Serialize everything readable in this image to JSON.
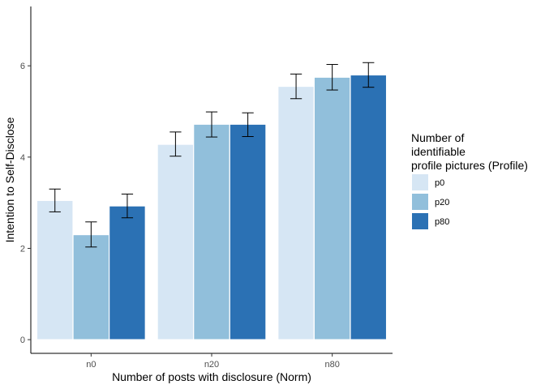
{
  "chart_data": {
    "type": "bar",
    "xlabel": "Number of posts with disclosure (Norm)",
    "ylabel": "Intention to Self-Disclose",
    "categories": [
      "n0",
      "n20",
      "n80"
    ],
    "ylim": [
      -0.3,
      7.3
    ],
    "yticks": [
      0,
      2,
      4,
      6
    ],
    "grid": false,
    "legend": {
      "title_lines": [
        "Number of",
        "identifiable",
        "profile pictures (Profile)"
      ],
      "position": "right"
    },
    "series": [
      {
        "name": "p0",
        "color": "#d6e6f4",
        "values": [
          3.05,
          4.28,
          5.55
        ],
        "err_low": [
          2.8,
          4.02,
          5.28
        ],
        "err_high": [
          3.3,
          4.55,
          5.82
        ]
      },
      {
        "name": "p20",
        "color": "#91bfdb",
        "values": [
          2.3,
          4.72,
          5.75
        ],
        "err_low": [
          2.03,
          4.44,
          5.47
        ],
        "err_high": [
          2.58,
          4.99,
          6.03
        ]
      },
      {
        "name": "p80",
        "color": "#2b71b4",
        "values": [
          2.93,
          4.72,
          5.8
        ],
        "err_low": [
          2.67,
          4.45,
          5.53
        ],
        "err_high": [
          3.19,
          4.97,
          6.07
        ]
      }
    ]
  }
}
